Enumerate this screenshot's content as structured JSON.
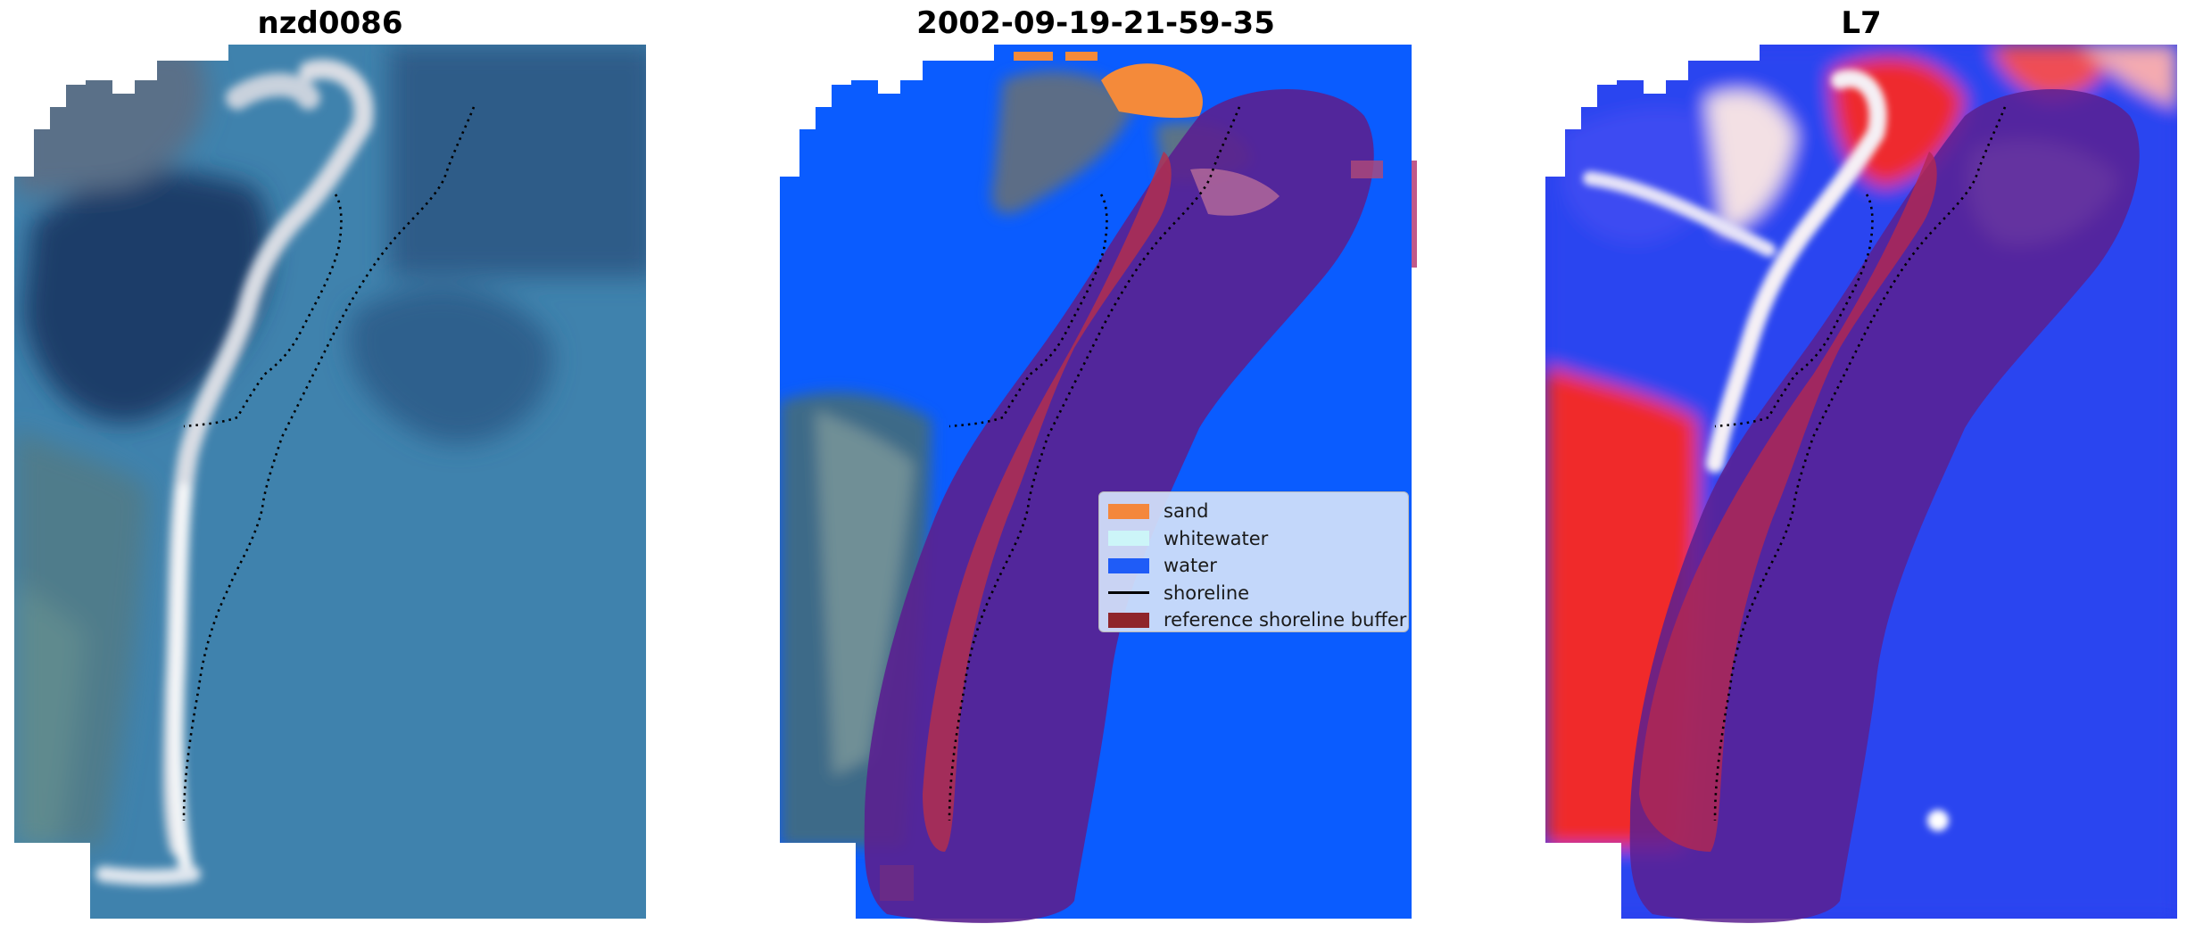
{
  "panels": [
    {
      "title": "nzd0086",
      "content": "rgb image"
    },
    {
      "title": "2002-09-19-21-59-35",
      "content": "classified image"
    },
    {
      "title": "L7",
      "content": "water index image"
    }
  ],
  "legend": {
    "placement": "center-right of middle panel",
    "items": [
      {
        "label": "sand",
        "color": "#f4873c",
        "type": "patch"
      },
      {
        "label": "whitewater",
        "color": "#ccf5f8",
        "type": "patch"
      },
      {
        "label": "water",
        "color": "#1f5cf7",
        "type": "patch"
      },
      {
        "label": "shoreline",
        "color": "#000000",
        "type": "line"
      },
      {
        "label": "reference shoreline buffer",
        "color": "#8f252b",
        "type": "patch"
      }
    ]
  },
  "colors": {
    "water_class": "#0a5cff",
    "sand_class": "#f48a3a",
    "buffer_overlay": "#6a1f8f",
    "index_positive": "#e8262b",
    "index_negative": "#2233ee"
  }
}
